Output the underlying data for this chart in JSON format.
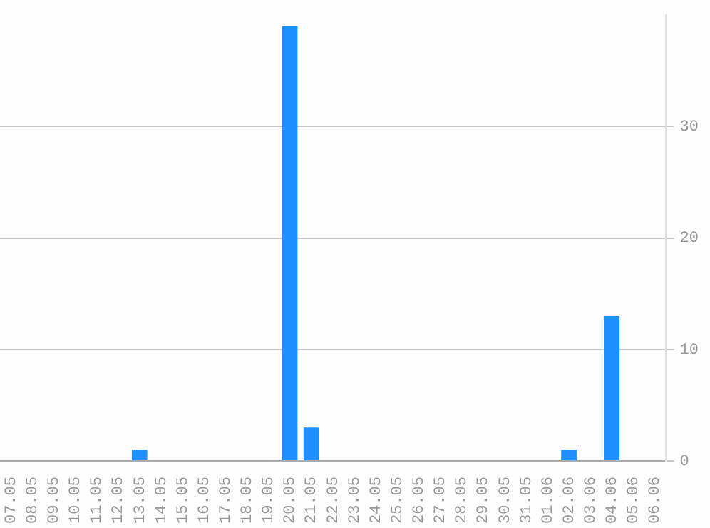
{
  "chart_data": {
    "type": "bar",
    "categories": [
      "07.05",
      "08.05",
      "09.05",
      "10.05",
      "11.05",
      "12.05",
      "13.05",
      "14.05",
      "15.05",
      "16.05",
      "17.05",
      "18.05",
      "19.05",
      "20.05",
      "21.05",
      "22.05",
      "23.05",
      "24.05",
      "25.05",
      "26.05",
      "27.05",
      "28.05",
      "29.05",
      "30.05",
      "31.05",
      "01.06",
      "02.06",
      "03.06",
      "04.06",
      "05.06",
      "06.06"
    ],
    "values": [
      0,
      0,
      0,
      0,
      0,
      0,
      1,
      0,
      0,
      0,
      0,
      0,
      0,
      39,
      3,
      0,
      0,
      0,
      0,
      0,
      0,
      0,
      0,
      0,
      0,
      0,
      1,
      0,
      13,
      0,
      0
    ],
    "color": "#1e90ff",
    "ylim": [
      0,
      40
    ],
    "yticks": [
      0,
      10,
      20,
      30
    ],
    "grid": "y"
  }
}
